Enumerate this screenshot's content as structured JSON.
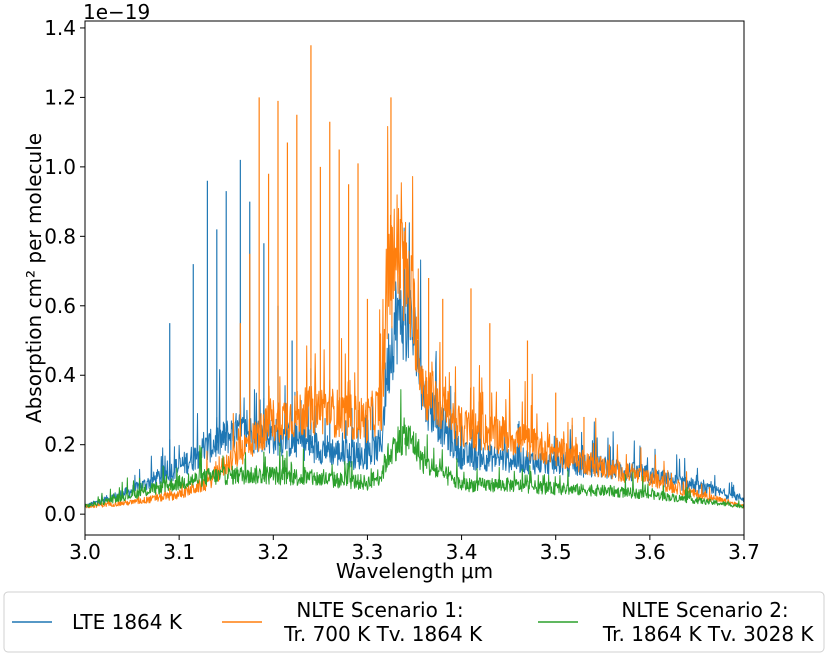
{
  "chart_data": {
    "type": "line",
    "xlabel": "Wavelength μm",
    "ylabel": "Absorption cm² per molecule",
    "y_multiplier": "1e−19",
    "xlim": [
      3.0,
      3.7
    ],
    "ylim": [
      -0.06,
      1.42
    ],
    "x_ticks": [
      "3.0",
      "3.1",
      "3.2",
      "3.3",
      "3.4",
      "3.5",
      "3.6",
      "3.7"
    ],
    "y_ticks": [
      "0.0",
      "0.2",
      "0.4",
      "0.6",
      "0.8",
      "1.0",
      "1.2",
      "1.4"
    ],
    "grid": false,
    "legend_position": "below-plot",
    "series": [
      {
        "name": "LTE 1864 K",
        "color": "#1f77b4",
        "x": [
          3.0,
          3.05,
          3.1,
          3.13,
          3.16,
          3.2,
          3.25,
          3.28,
          3.3,
          3.315,
          3.32,
          3.33,
          3.34,
          3.35,
          3.36,
          3.4,
          3.45,
          3.5,
          3.55,
          3.6,
          3.65,
          3.7
        ],
        "y": [
          0.02,
          0.06,
          0.12,
          0.17,
          0.21,
          0.2,
          0.17,
          0.15,
          0.15,
          0.18,
          0.35,
          0.5,
          0.52,
          0.45,
          0.3,
          0.15,
          0.14,
          0.13,
          0.12,
          0.1,
          0.07,
          0.04
        ],
        "peaks": [
          {
            "x": 3.09,
            "y": 0.55
          },
          {
            "x": 3.115,
            "y": 0.72
          },
          {
            "x": 3.13,
            "y": 0.96
          },
          {
            "x": 3.14,
            "y": 0.82
          },
          {
            "x": 3.15,
            "y": 0.93
          },
          {
            "x": 3.165,
            "y": 1.02
          },
          {
            "x": 3.175,
            "y": 0.9
          },
          {
            "x": 3.19,
            "y": 0.78
          },
          {
            "x": 3.205,
            "y": 0.6
          },
          {
            "x": 3.22,
            "y": 0.5
          },
          {
            "x": 3.24,
            "y": 0.42
          },
          {
            "x": 3.26,
            "y": 0.35
          },
          {
            "x": 3.29,
            "y": 0.3
          },
          {
            "x": 3.33,
            "y": 0.6
          },
          {
            "x": 3.42,
            "y": 0.3
          },
          {
            "x": 3.46,
            "y": 0.26
          },
          {
            "x": 3.5,
            "y": 0.22
          },
          {
            "x": 3.54,
            "y": 0.18
          }
        ]
      },
      {
        "name": "NLTE Scenario 1:\n Tr. 700 K Tv. 1864 K",
        "color": "#ff7f0e",
        "x": [
          3.0,
          3.05,
          3.1,
          3.13,
          3.16,
          3.2,
          3.25,
          3.28,
          3.3,
          3.315,
          3.32,
          3.33,
          3.34,
          3.35,
          3.36,
          3.4,
          3.45,
          3.5,
          3.55,
          3.6,
          3.65,
          3.7
        ],
        "y": [
          0.02,
          0.03,
          0.05,
          0.08,
          0.15,
          0.24,
          0.27,
          0.25,
          0.24,
          0.28,
          0.55,
          0.68,
          0.62,
          0.5,
          0.32,
          0.22,
          0.2,
          0.16,
          0.12,
          0.09,
          0.05,
          0.02
        ],
        "peaks": [
          {
            "x": 3.165,
            "y": 0.55
          },
          {
            "x": 3.175,
            "y": 0.75
          },
          {
            "x": 3.185,
            "y": 1.2
          },
          {
            "x": 3.195,
            "y": 0.98
          },
          {
            "x": 3.205,
            "y": 1.19
          },
          {
            "x": 3.215,
            "y": 1.07
          },
          {
            "x": 3.225,
            "y": 1.15
          },
          {
            "x": 3.24,
            "y": 1.35
          },
          {
            "x": 3.25,
            "y": 1.0
          },
          {
            "x": 3.26,
            "y": 1.13
          },
          {
            "x": 3.27,
            "y": 1.05
          },
          {
            "x": 3.28,
            "y": 0.95
          },
          {
            "x": 3.29,
            "y": 1.01
          },
          {
            "x": 3.3,
            "y": 0.62
          },
          {
            "x": 3.325,
            "y": 1.2
          },
          {
            "x": 3.335,
            "y": 0.85
          },
          {
            "x": 3.365,
            "y": 0.68
          },
          {
            "x": 3.38,
            "y": 0.62
          },
          {
            "x": 3.41,
            "y": 0.65
          },
          {
            "x": 3.43,
            "y": 0.55
          },
          {
            "x": 3.47,
            "y": 0.5
          },
          {
            "x": 3.5,
            "y": 0.35
          },
          {
            "x": 3.53,
            "y": 0.28
          }
        ]
      },
      {
        "name": "NLTE Scenario 2:\n Tr. 1864 K Tv. 3028 K",
        "color": "#2ca02c",
        "x": [
          3.0,
          3.05,
          3.1,
          3.13,
          3.16,
          3.2,
          3.25,
          3.28,
          3.3,
          3.315,
          3.32,
          3.33,
          3.34,
          3.35,
          3.36,
          3.4,
          3.45,
          3.5,
          3.55,
          3.6,
          3.65,
          3.7
        ],
        "y": [
          0.02,
          0.05,
          0.08,
          0.095,
          0.1,
          0.1,
          0.09,
          0.085,
          0.08,
          0.1,
          0.14,
          0.18,
          0.2,
          0.18,
          0.13,
          0.075,
          0.075,
          0.065,
          0.06,
          0.05,
          0.035,
          0.02
        ],
        "peaks": [
          {
            "x": 3.17,
            "y": 0.16
          },
          {
            "x": 3.19,
            "y": 0.18
          },
          {
            "x": 3.21,
            "y": 0.17
          },
          {
            "x": 3.34,
            "y": 0.22
          }
        ]
      }
    ]
  }
}
